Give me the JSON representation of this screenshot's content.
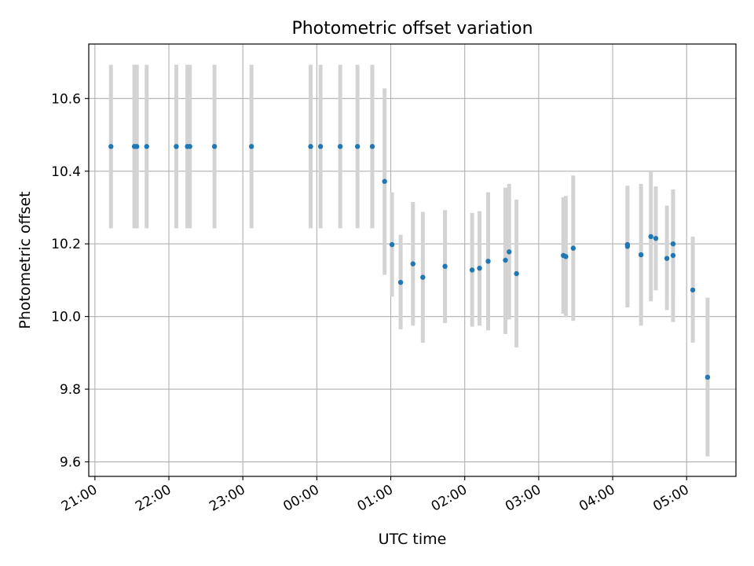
{
  "chart_data": {
    "type": "scatter",
    "title": "Photometric offset variation",
    "xlabel": "UTC time",
    "ylabel": "Photometric offset",
    "x_axis_kind": "time",
    "xlim": [
      "20:55",
      "05:40"
    ],
    "ylim": [
      9.56,
      10.75
    ],
    "x_ticks": [
      "21:00",
      "22:00",
      "23:00",
      "00:00",
      "01:00",
      "02:00",
      "03:00",
      "04:00",
      "05:00"
    ],
    "y_ticks": [
      "9.6",
      "9.8",
      "10.0",
      "10.2",
      "10.4",
      "10.6"
    ],
    "grid": true,
    "colors": {
      "point": "#1f77b4",
      "errorbar": "#d3d3d3",
      "grid": "#b0b0b0"
    },
    "points": [
      {
        "x": "21:13",
        "y": 10.468,
        "err_low": 10.243,
        "err_high": 10.693
      },
      {
        "x": "21:32",
        "y": 10.468,
        "err_low": 10.243,
        "err_high": 10.693
      },
      {
        "x": "21:34",
        "y": 10.468,
        "err_low": 10.243,
        "err_high": 10.693
      },
      {
        "x": "21:42",
        "y": 10.468,
        "err_low": 10.243,
        "err_high": 10.693
      },
      {
        "x": "22:06",
        "y": 10.468,
        "err_low": 10.243,
        "err_high": 10.693
      },
      {
        "x": "22:15",
        "y": 10.468,
        "err_low": 10.243,
        "err_high": 10.693
      },
      {
        "x": "22:17",
        "y": 10.468,
        "err_low": 10.243,
        "err_high": 10.693
      },
      {
        "x": "22:37",
        "y": 10.468,
        "err_low": 10.243,
        "err_high": 10.693
      },
      {
        "x": "23:07",
        "y": 10.468,
        "err_low": 10.243,
        "err_high": 10.693
      },
      {
        "x": "23:55",
        "y": 10.468,
        "err_low": 10.243,
        "err_high": 10.693
      },
      {
        "x": "00:03",
        "y": 10.468,
        "err_low": 10.243,
        "err_high": 10.693
      },
      {
        "x": "00:19",
        "y": 10.468,
        "err_low": 10.243,
        "err_high": 10.693
      },
      {
        "x": "00:33",
        "y": 10.468,
        "err_low": 10.243,
        "err_high": 10.693
      },
      {
        "x": "00:45",
        "y": 10.468,
        "err_low": 10.243,
        "err_high": 10.693
      },
      {
        "x": "00:55",
        "y": 10.372,
        "err_low": 10.115,
        "err_high": 10.628
      },
      {
        "x": "01:01",
        "y": 10.198,
        "err_low": 10.055,
        "err_high": 10.342
      },
      {
        "x": "01:08",
        "y": 10.094,
        "err_low": 9.965,
        "err_high": 10.225
      },
      {
        "x": "01:18",
        "y": 10.145,
        "err_low": 9.975,
        "err_high": 10.315
      },
      {
        "x": "01:26",
        "y": 10.108,
        "err_low": 9.928,
        "err_high": 10.288
      },
      {
        "x": "01:44",
        "y": 10.138,
        "err_low": 9.982,
        "err_high": 10.293
      },
      {
        "x": "02:06",
        "y": 10.128,
        "err_low": 9.972,
        "err_high": 10.285
      },
      {
        "x": "02:12",
        "y": 10.133,
        "err_low": 9.975,
        "err_high": 10.29
      },
      {
        "x": "02:19",
        "y": 10.152,
        "err_low": 9.962,
        "err_high": 10.342
      },
      {
        "x": "02:33",
        "y": 10.155,
        "err_low": 9.952,
        "err_high": 10.355
      },
      {
        "x": "02:36",
        "y": 10.178,
        "err_low": 9.992,
        "err_high": 10.365
      },
      {
        "x": "02:42",
        "y": 10.118,
        "err_low": 9.915,
        "err_high": 10.322
      },
      {
        "x": "03:20",
        "y": 10.168,
        "err_low": 10.008,
        "err_high": 10.328
      },
      {
        "x": "03:22",
        "y": 10.165,
        "err_low": 9.998,
        "err_high": 10.332
      },
      {
        "x": "03:28",
        "y": 10.188,
        "err_low": 9.988,
        "err_high": 10.388
      },
      {
        "x": "04:12",
        "y": 10.193,
        "err_low": 10.025,
        "err_high": 10.358
      },
      {
        "x": "04:12",
        "y": 10.198,
        "err_low": 10.035,
        "err_high": 10.36
      },
      {
        "x": "04:23",
        "y": 10.17,
        "err_low": 9.975,
        "err_high": 10.365
      },
      {
        "x": "04:31",
        "y": 10.22,
        "err_low": 10.042,
        "err_high": 10.398
      },
      {
        "x": "04:35",
        "y": 10.215,
        "err_low": 10.072,
        "err_high": 10.358
      },
      {
        "x": "04:44",
        "y": 10.16,
        "err_low": 10.018,
        "err_high": 10.305
      },
      {
        "x": "04:49",
        "y": 10.168,
        "err_low": 9.985,
        "err_high": 10.35
      },
      {
        "x": "04:49",
        "y": 10.2,
        "err_low": 10.06,
        "err_high": 10.34
      },
      {
        "x": "05:05",
        "y": 10.073,
        "err_low": 9.928,
        "err_high": 10.22
      },
      {
        "x": "05:17",
        "y": 9.833,
        "err_low": 9.615,
        "err_high": 10.052
      }
    ]
  }
}
